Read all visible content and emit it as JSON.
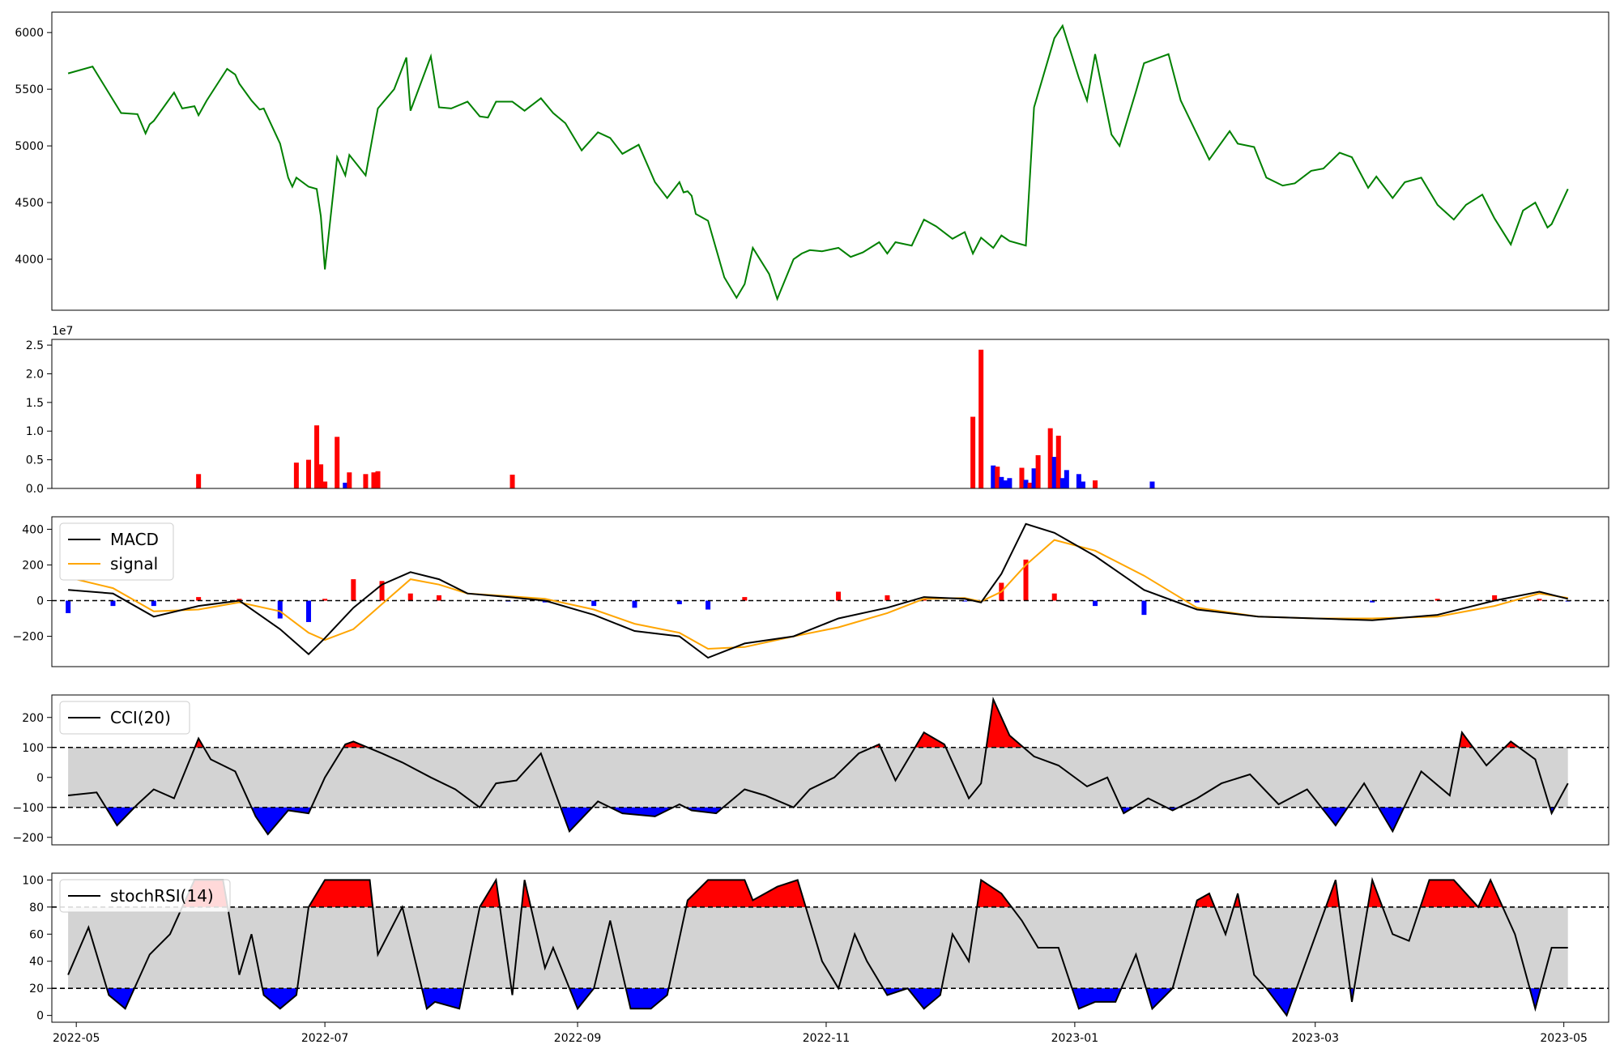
{
  "colors": {
    "price_line": "#008000",
    "up": "#ff0000",
    "down": "#0000ff",
    "signal": "#ffa500",
    "band": "#d3d3d3",
    "line": "#000000"
  },
  "x_axis": {
    "range": [
      "2022-04-25",
      "2023-05-12"
    ],
    "ticks": [
      "2022-05",
      "2022-07",
      "2022-09",
      "2022-11",
      "2023-01",
      "2023-03",
      "2023-05"
    ]
  },
  "chart_data": [
    {
      "type": "line",
      "panel": "price",
      "ylim": [
        3550,
        6180
      ],
      "yticks": [
        "4000",
        "4500",
        "5000",
        "5500",
        "6000"
      ],
      "x": [
        "2022-04-29",
        "2022-05-05",
        "2022-05-12",
        "2022-05-16",
        "2022-05-18",
        "2022-05-19",
        "2022-05-20",
        "2022-05-25",
        "2022-05-27",
        "2022-05-30",
        "2022-05-31",
        "2022-06-02",
        "2022-06-07",
        "2022-06-09",
        "2022-06-10",
        "2022-06-13",
        "2022-06-15",
        "2022-06-16",
        "2022-06-20",
        "2022-06-22",
        "2022-06-23",
        "2022-06-24",
        "2022-06-27",
        "2022-06-29",
        "2022-06-30",
        "2022-07-01",
        "2022-07-04",
        "2022-07-06",
        "2022-07-07",
        "2022-07-11",
        "2022-07-13",
        "2022-07-14",
        "2022-07-18",
        "2022-07-21",
        "2022-07-22",
        "2022-07-27",
        "2022-07-29",
        "2022-08-01",
        "2022-08-05",
        "2022-08-08",
        "2022-08-10",
        "2022-08-12",
        "2022-08-16",
        "2022-08-19",
        "2022-08-23",
        "2022-08-26",
        "2022-08-29",
        "2022-09-02",
        "2022-09-06",
        "2022-09-09",
        "2022-09-12",
        "2022-09-16",
        "2022-09-20",
        "2022-09-23",
        "2022-09-26",
        "2022-09-27",
        "2022-09-28",
        "2022-09-29",
        "2022-09-30",
        "2022-10-03",
        "2022-10-07",
        "2022-10-10",
        "2022-10-12",
        "2022-10-14",
        "2022-10-18",
        "2022-10-20",
        "2022-10-24",
        "2022-10-26",
        "2022-10-28",
        "2022-10-31",
        "2022-11-04",
        "2022-11-07",
        "2022-11-10",
        "2022-11-14",
        "2022-11-16",
        "2022-11-18",
        "2022-11-22",
        "2022-11-25",
        "2022-11-28",
        "2022-12-02",
        "2022-12-05",
        "2022-12-07",
        "2022-12-09",
        "2022-12-12",
        "2022-12-14",
        "2022-12-16",
        "2022-12-20",
        "2022-12-22",
        "2022-12-27",
        "2022-12-29",
        "2023-01-02",
        "2023-01-04",
        "2023-01-06",
        "2023-01-10",
        "2023-01-12",
        "2023-01-16",
        "2023-01-18",
        "2023-01-24",
        "2023-01-27",
        "2023-02-03",
        "2023-02-08",
        "2023-02-10",
        "2023-02-14",
        "2023-02-17",
        "2023-02-21",
        "2023-02-24",
        "2023-02-28",
        "2023-03-03",
        "2023-03-07",
        "2023-03-10",
        "2023-03-14",
        "2023-03-16",
        "2023-03-20",
        "2023-03-23",
        "2023-03-27",
        "2023-03-31",
        "2023-04-04",
        "2023-04-07",
        "2023-04-11",
        "2023-04-14",
        "2023-04-18",
        "2023-04-21",
        "2023-04-24",
        "2023-04-27",
        "2023-04-28",
        "2023-05-02"
      ],
      "values": [
        5640,
        5700,
        5290,
        5280,
        5110,
        5190,
        5220,
        5470,
        5330,
        5350,
        5270,
        5400,
        5680,
        5630,
        5550,
        5400,
        5320,
        5330,
        5020,
        4720,
        4640,
        4720,
        4640,
        4620,
        4380,
        3910,
        4900,
        4740,
        4920,
        4740,
        5140,
        5330,
        5500,
        5780,
        5310,
        5790,
        5340,
        5330,
        5390,
        5260,
        5250,
        5390,
        5390,
        5310,
        5420,
        5290,
        5200,
        4960,
        5120,
        5070,
        4930,
        5010,
        4680,
        4540,
        4680,
        4590,
        4600,
        4560,
        4400,
        4340,
        3840,
        3660,
        3780,
        4100,
        3870,
        3650,
        4000,
        4050,
        4080,
        4070,
        4100,
        4020,
        4060,
        4150,
        4050,
        4150,
        4120,
        4350,
        4290,
        4180,
        4240,
        4050,
        4190,
        4100,
        4210,
        4160,
        4120,
        5340,
        5950,
        6060,
        5600,
        5400,
        5810,
        5100,
        5000,
        5480,
        5730,
        5810,
        5400,
        4880,
        5130,
        5020,
        4990,
        4720,
        4650,
        4670,
        4780,
        4800,
        4940,
        4900,
        4630,
        4730,
        4540,
        4680,
        4720,
        4480,
        4350,
        4480,
        4570,
        4360,
        4130,
        4430,
        4500,
        4280,
        4310,
        4620
      ]
    },
    {
      "type": "bar",
      "panel": "volume",
      "exponent_label": "1e7",
      "ylim": [
        0,
        2.6
      ],
      "yticks": [
        "0.0",
        "0.5",
        "1.0",
        "1.5",
        "2.0",
        "2.5"
      ],
      "unit_scale": "1e7",
      "x": [
        "2022-05-31",
        "2022-06-24",
        "2022-06-27",
        "2022-06-29",
        "2022-06-30",
        "2022-07-01",
        "2022-07-04",
        "2022-07-06",
        "2022-07-07",
        "2022-07-11",
        "2022-07-13",
        "2022-07-14",
        "2022-08-16",
        "2022-12-07",
        "2022-12-09",
        "2022-12-12",
        "2022-12-13",
        "2022-12-14",
        "2022-12-15",
        "2022-12-16",
        "2022-12-19",
        "2022-12-20",
        "2022-12-21",
        "2022-12-22",
        "2022-12-23",
        "2022-12-26",
        "2022-12-27",
        "2022-12-28",
        "2022-12-29",
        "2022-12-30",
        "2023-01-02",
        "2023-01-03",
        "2023-01-06",
        "2023-01-20"
      ],
      "values": [
        0.25,
        0.45,
        0.5,
        1.1,
        0.42,
        0.12,
        0.9,
        0.1,
        0.28,
        0.25,
        0.28,
        0.3,
        0.24,
        1.25,
        2.42,
        0.4,
        0.38,
        0.2,
        0.14,
        0.18,
        0.36,
        0.15,
        0.1,
        0.35,
        0.58,
        1.05,
        0.55,
        0.92,
        0.18,
        0.32,
        0.25,
        0.12,
        0.14,
        0.12
      ],
      "direction": [
        "up",
        "up",
        "up",
        "up",
        "up",
        "up",
        "up",
        "down",
        "up",
        "up",
        "up",
        "up",
        "up",
        "up",
        "up",
        "down",
        "up",
        "down",
        "down",
        "down",
        "up",
        "down",
        "up",
        "down",
        "up",
        "up",
        "down",
        "up",
        "down",
        "down",
        "down",
        "down",
        "up",
        "down"
      ]
    },
    {
      "type": "line",
      "panel": "macd",
      "ylim": [
        -370,
        470
      ],
      "yticks": [
        "−200",
        "0",
        "200",
        "400"
      ],
      "legend": [
        "MACD",
        "signal"
      ],
      "legend_position": "upper left",
      "x": [
        "2022-04-29",
        "2022-05-10",
        "2022-05-20",
        "2022-05-31",
        "2022-06-10",
        "2022-06-20",
        "2022-06-27",
        "2022-07-01",
        "2022-07-08",
        "2022-07-15",
        "2022-07-22",
        "2022-07-29",
        "2022-08-05",
        "2022-08-15",
        "2022-08-24",
        "2022-09-05",
        "2022-09-15",
        "2022-09-26",
        "2022-10-03",
        "2022-10-12",
        "2022-10-24",
        "2022-11-04",
        "2022-11-16",
        "2022-11-25",
        "2022-12-05",
        "2022-12-09",
        "2022-12-14",
        "2022-12-20",
        "2022-12-27",
        "2023-01-06",
        "2023-01-18",
        "2023-01-31",
        "2023-02-15",
        "2023-03-01",
        "2023-03-15",
        "2023-03-31",
        "2023-04-14",
        "2023-04-25",
        "2023-05-02"
      ],
      "series": [
        {
          "name": "MACD",
          "values": [
            60,
            40,
            -90,
            -30,
            0,
            -160,
            -300,
            -210,
            -40,
            90,
            160,
            120,
            40,
            20,
            0,
            -80,
            -170,
            -200,
            -320,
            -240,
            -200,
            -100,
            -40,
            20,
            10,
            -10,
            150,
            430,
            380,
            250,
            60,
            -50,
            -90,
            -100,
            -110,
            -80,
            0,
            50,
            10
          ]
        },
        {
          "name": "signal",
          "values": [
            130,
            70,
            -60,
            -50,
            -10,
            -60,
            -180,
            -220,
            -160,
            -20,
            120,
            90,
            40,
            25,
            10,
            -50,
            -130,
            -180,
            -270,
            -260,
            -200,
            -150,
            -70,
            10,
            15,
            -5,
            50,
            200,
            340,
            280,
            140,
            -40,
            -90,
            -100,
            -100,
            -90,
            -30,
            40,
            15
          ]
        },
        {
          "name": "histogram",
          "values": [
            -70,
            -30,
            -30,
            20,
            10,
            -100,
            -120,
            10,
            120,
            110,
            40,
            30,
            0,
            -5,
            -10,
            -30,
            -40,
            -20,
            -50,
            20,
            0,
            50,
            30,
            10,
            -5,
            -5,
            100,
            230,
            40,
            -30,
            -80,
            -10,
            0,
            0,
            -10,
            10,
            30,
            10,
            -5
          ]
        }
      ]
    },
    {
      "type": "line",
      "panel": "cci",
      "ylim": [
        -225,
        275
      ],
      "yticks": [
        "−200",
        "−100",
        "0",
        "100",
        "200"
      ],
      "thresholds": [
        -100,
        100
      ],
      "legend": [
        "CCI(20)"
      ],
      "legend_position": "upper left",
      "x": [
        "2022-04-29",
        "2022-05-06",
        "2022-05-11",
        "2022-05-16",
        "2022-05-20",
        "2022-05-25",
        "2022-05-31",
        "2022-06-03",
        "2022-06-09",
        "2022-06-14",
        "2022-06-17",
        "2022-06-22",
        "2022-06-27",
        "2022-07-01",
        "2022-07-06",
        "2022-07-08",
        "2022-07-15",
        "2022-07-20",
        "2022-07-27",
        "2022-08-02",
        "2022-08-08",
        "2022-08-12",
        "2022-08-17",
        "2022-08-23",
        "2022-08-30",
        "2022-09-06",
        "2022-09-12",
        "2022-09-20",
        "2022-09-26",
        "2022-09-29",
        "2022-10-05",
        "2022-10-12",
        "2022-10-17",
        "2022-10-24",
        "2022-10-28",
        "2022-11-03",
        "2022-11-09",
        "2022-11-14",
        "2022-11-18",
        "2022-11-25",
        "2022-11-30",
        "2022-12-06",
        "2022-12-09",
        "2022-12-12",
        "2022-12-16",
        "2022-12-22",
        "2022-12-28",
        "2023-01-04",
        "2023-01-09",
        "2023-01-13",
        "2023-01-19",
        "2023-01-25",
        "2023-01-31",
        "2023-02-06",
        "2023-02-13",
        "2023-02-20",
        "2023-02-27",
        "2023-03-06",
        "2023-03-13",
        "2023-03-20",
        "2023-03-27",
        "2023-04-03",
        "2023-04-06",
        "2023-04-12",
        "2023-04-18",
        "2023-04-24",
        "2023-04-28",
        "2023-05-02"
      ],
      "values": [
        -60,
        -50,
        -160,
        -90,
        -40,
        -70,
        130,
        60,
        20,
        -130,
        -190,
        -110,
        -120,
        0,
        110,
        120,
        80,
        50,
        0,
        -40,
        -100,
        -20,
        -10,
        80,
        -180,
        -80,
        -120,
        -130,
        -90,
        -110,
        -120,
        -40,
        -60,
        -100,
        -40,
        0,
        80,
        110,
        -10,
        150,
        110,
        -70,
        -20,
        260,
        140,
        70,
        40,
        -30,
        0,
        -120,
        -70,
        -110,
        -70,
        -20,
        10,
        -90,
        -40,
        -160,
        -20,
        -180,
        20,
        -60,
        150,
        40,
        120,
        60,
        -120,
        -20
      ]
    },
    {
      "type": "line",
      "panel": "stochrsi",
      "ylim": [
        -5,
        105
      ],
      "yticks": [
        "0",
        "20",
        "40",
        "60",
        "80",
        "100"
      ],
      "thresholds": [
        20,
        80
      ],
      "legend": [
        "stochRSI(14)"
      ],
      "legend_position": "upper left",
      "x": [
        "2022-04-29",
        "2022-05-04",
        "2022-05-09",
        "2022-05-13",
        "2022-05-19",
        "2022-05-24",
        "2022-05-27",
        "2022-05-30",
        "2022-06-06",
        "2022-06-10",
        "2022-06-13",
        "2022-06-16",
        "2022-06-20",
        "2022-06-24",
        "2022-06-27",
        "2022-07-01",
        "2022-07-06",
        "2022-07-12",
        "2022-07-14",
        "2022-07-20",
        "2022-07-26",
        "2022-07-28",
        "2022-08-03",
        "2022-08-08",
        "2022-08-12",
        "2022-08-16",
        "2022-08-19",
        "2022-08-24",
        "2022-08-26",
        "2022-09-01",
        "2022-09-05",
        "2022-09-09",
        "2022-09-14",
        "2022-09-19",
        "2022-09-23",
        "2022-09-28",
        "2022-10-03",
        "2022-10-06",
        "2022-10-12",
        "2022-10-14",
        "2022-10-20",
        "2022-10-25",
        "2022-10-31",
        "2022-11-04",
        "2022-11-08",
        "2022-11-11",
        "2022-11-16",
        "2022-11-21",
        "2022-11-25",
        "2022-11-29",
        "2022-12-02",
        "2022-12-06",
        "2022-12-09",
        "2022-12-14",
        "2022-12-19",
        "2022-12-23",
        "2022-12-28",
        "2023-01-02",
        "2023-01-06",
        "2023-01-11",
        "2023-01-16",
        "2023-01-20",
        "2023-01-25",
        "2023-01-31",
        "2023-02-03",
        "2023-02-07",
        "2023-02-10",
        "2023-02-14",
        "2023-02-17",
        "2023-02-22",
        "2023-02-28",
        "2023-03-06",
        "2023-03-10",
        "2023-03-15",
        "2023-03-20",
        "2023-03-24",
        "2023-03-29",
        "2023-04-04",
        "2023-04-10",
        "2023-04-13",
        "2023-04-19",
        "2023-04-24",
        "2023-04-28",
        "2023-05-02"
      ],
      "values": [
        30,
        65,
        15,
        5,
        45,
        60,
        80,
        100,
        100,
        30,
        60,
        15,
        5,
        15,
        80,
        100,
        100,
        100,
        45,
        80,
        5,
        10,
        5,
        80,
        100,
        15,
        100,
        35,
        50,
        5,
        20,
        70,
        5,
        5,
        15,
        85,
        100,
        100,
        100,
        85,
        95,
        100,
        40,
        20,
        60,
        40,
        15,
        20,
        5,
        15,
        60,
        40,
        100,
        90,
        70,
        50,
        50,
        5,
        10,
        10,
        45,
        5,
        20,
        85,
        90,
        60,
        90,
        30,
        20,
        0,
        50,
        100,
        10,
        100,
        60,
        55,
        100,
        100,
        80,
        100,
        60,
        5,
        50,
        50
      ]
    }
  ]
}
